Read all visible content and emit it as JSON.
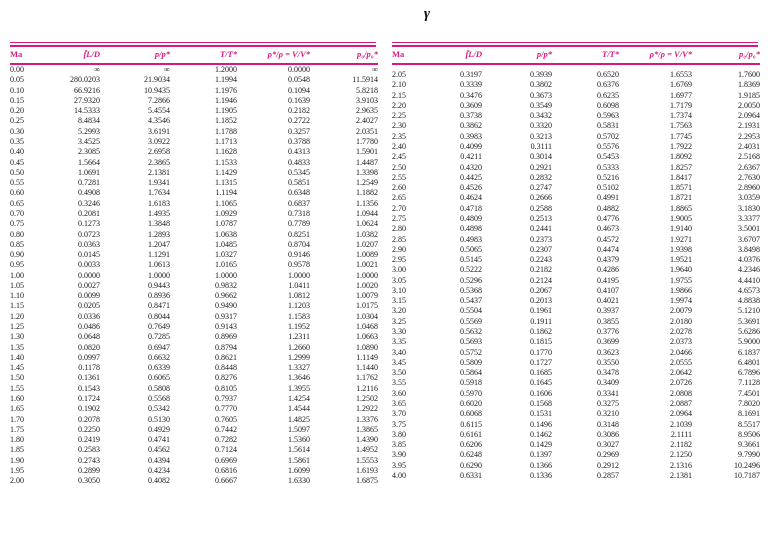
{
  "page_title": "γ",
  "colors": {
    "accent": "#d9187e",
    "text": "#181818",
    "background": "#ffffff"
  },
  "table": {
    "headers": [
      "Ma",
      "f̄L/D",
      "p/p*",
      "T/T*",
      "ρ*/ρ = V/V*",
      "p₀/p₀*"
    ],
    "left_rows": [
      [
        "0.00",
        "∞",
        "∞",
        "1.2000",
        "0.0000",
        "∞"
      ],
      [
        "0.05",
        "280.0203",
        "21.9034",
        "1.1994",
        "0.0548",
        "11.5914"
      ],
      [
        "0.10",
        "66.9216",
        "10.9435",
        "1.1976",
        "0.1094",
        "5.8218"
      ],
      [
        "0.15",
        "27.9320",
        "7.2866",
        "1.1946",
        "0.1639",
        "3.9103"
      ],
      [
        "0.20",
        "14.5333",
        "5.4554",
        "1.1905",
        "0.2182",
        "2.9635"
      ],
      [
        "0.25",
        "8.4834",
        "4.3546",
        "1.1852",
        "0.2722",
        "2.4027"
      ],
      [
        "0.30",
        "5.2993",
        "3.6191",
        "1.1788",
        "0.3257",
        "2.0351"
      ],
      [
        "0.35",
        "3.4525",
        "3.0922",
        "1.1713",
        "0.3788",
        "1.7780"
      ],
      [
        "0.40",
        "2.3085",
        "2.6958",
        "1.1628",
        "0.4313",
        "1.5901"
      ],
      [
        "0.45",
        "1.5664",
        "2.3865",
        "1.1533",
        "0.4833",
        "1.4487"
      ],
      [
        "0.50",
        "1.0691",
        "2.1381",
        "1.1429",
        "0.5345",
        "1.3398"
      ],
      [
        "0.55",
        "0.7281",
        "1.9341",
        "1.1315",
        "0.5851",
        "1.2549"
      ],
      [
        "0.60",
        "0.4908",
        "1.7634",
        "1.1194",
        "0.6348",
        "1.1882"
      ],
      [
        "0.65",
        "0.3246",
        "1.6183",
        "1.1065",
        "0.6837",
        "1.1356"
      ],
      [
        "0.70",
        "0.2081",
        "1.4935",
        "1.0929",
        "0.7318",
        "1.0944"
      ],
      [
        "0.75",
        "0.1273",
        "1.3848",
        "1.0787",
        "0.7789",
        "1.0624"
      ],
      [
        "0.80",
        "0.0723",
        "1.2893",
        "1.0638",
        "0.8251",
        "1.0382"
      ],
      [
        "0.85",
        "0.0363",
        "1.2047",
        "1.0485",
        "0.8704",
        "1.0207"
      ],
      [
        "0.90",
        "0.0145",
        "1.1291",
        "1.0327",
        "0.9146",
        "1.0089"
      ],
      [
        "0.95",
        "0.0033",
        "1.0613",
        "1.0165",
        "0.9578",
        "1.0021"
      ],
      [
        "1.00",
        "0.0000",
        "1.0000",
        "1.0000",
        "1.0000",
        "1.0000"
      ],
      [
        "1.05",
        "0.0027",
        "0.9443",
        "0.9832",
        "1.0411",
        "1.0020"
      ],
      [
        "1.10",
        "0.0099",
        "0.8936",
        "0.9662",
        "1.0812",
        "1.0079"
      ],
      [
        "1.15",
        "0.0205",
        "0.8471",
        "0.9490",
        "1.1203",
        "1.0175"
      ],
      [
        "1.20",
        "0.0336",
        "0.8044",
        "0.9317",
        "1.1583",
        "1.0304"
      ],
      [
        "1.25",
        "0.0486",
        "0.7649",
        "0.9143",
        "1.1952",
        "1.0468"
      ],
      [
        "1.30",
        "0.0648",
        "0.7285",
        "0.8969",
        "1.2311",
        "1.0663"
      ],
      [
        "1.35",
        "0.0820",
        "0.6947",
        "0.8794",
        "1.2660",
        "1.0890"
      ],
      [
        "1.40",
        "0.0997",
        "0.6632",
        "0.8621",
        "1.2999",
        "1.1149"
      ],
      [
        "1.45",
        "0.1178",
        "0.6339",
        "0.8448",
        "1.3327",
        "1.1440"
      ],
      [
        "1.50",
        "0.1361",
        "0.6065",
        "0.8276",
        "1.3646",
        "1.1762"
      ],
      [
        "1.55",
        "0.1543",
        "0.5808",
        "0.8105",
        "1.3955",
        "1.2116"
      ],
      [
        "1.60",
        "0.1724",
        "0.5568",
        "0.7937",
        "1.4254",
        "1.2502"
      ],
      [
        "1.65",
        "0.1902",
        "0.5342",
        "0.7770",
        "1.4544",
        "1.2922"
      ],
      [
        "1.70",
        "0.2078",
        "0.5130",
        "0.7605",
        "1.4825",
        "1.3376"
      ],
      [
        "1.75",
        "0.2250",
        "0.4929",
        "0.7442",
        "1.5097",
        "1.3865"
      ],
      [
        "1.80",
        "0.2419",
        "0.4741",
        "0.7282",
        "1.5360",
        "1.4390"
      ],
      [
        "1.85",
        "0.2583",
        "0.4562",
        "0.7124",
        "1.5614",
        "1.4952"
      ],
      [
        "1.90",
        "0.2743",
        "0.4394",
        "0.6969",
        "1.5861",
        "1.5553"
      ],
      [
        "1.95",
        "0.2899",
        "0.4234",
        "0.6816",
        "1.6099",
        "1.6193"
      ],
      [
        "2.00",
        "0.3050",
        "0.4082",
        "0.6667",
        "1.6330",
        "1.6875"
      ]
    ],
    "right_rows": [
      [
        "2.05",
        "0.3197",
        "0.3939",
        "0.6520",
        "1.6553",
        "1.7600"
      ],
      [
        "2.10",
        "0.3339",
        "0.3802",
        "0.6376",
        "1.6769",
        "1.8369"
      ],
      [
        "2.15",
        "0.3476",
        "0.3673",
        "0.6235",
        "1.6977",
        "1.9185"
      ],
      [
        "2.20",
        "0.3609",
        "0.3549",
        "0.6098",
        "1.7179",
        "2.0050"
      ],
      [
        "2.25",
        "0.3738",
        "0.3432",
        "0.5963",
        "1.7374",
        "2.0964"
      ],
      [
        "2.30",
        "0.3862",
        "0.3320",
        "0.5831",
        "1.7563",
        "2.1931"
      ],
      [
        "2.35",
        "0.3983",
        "0.3213",
        "0.5702",
        "1.7745",
        "2.2953"
      ],
      [
        "2.40",
        "0.4099",
        "0.3111",
        "0.5576",
        "1.7922",
        "2.4031"
      ],
      [
        "2.45",
        "0.4211",
        "0.3014",
        "0.5453",
        "1.8092",
        "2.5168"
      ],
      [
        "2.50",
        "0.4320",
        "0.2921",
        "0.5333",
        "1.8257",
        "2.6367"
      ],
      [
        "2.55",
        "0.4425",
        "0.2832",
        "0.5216",
        "1.8417",
        "2.7630"
      ],
      [
        "2.60",
        "0.4526",
        "0.2747",
        "0.5102",
        "1.8571",
        "2.8960"
      ],
      [
        "2.65",
        "0.4624",
        "0.2666",
        "0.4991",
        "1.8721",
        "3.0359"
      ],
      [
        "2.70",
        "0.4718",
        "0.2588",
        "0.4882",
        "1.8865",
        "3.1830"
      ],
      [
        "2.75",
        "0.4809",
        "0.2513",
        "0.4776",
        "1.9005",
        "3.3377"
      ],
      [
        "2.80",
        "0.4898",
        "0.2441",
        "0.4673",
        "1.9140",
        "3.5001"
      ],
      [
        "2.85",
        "0.4983",
        "0.2373",
        "0.4572",
        "1.9271",
        "3.6707"
      ],
      [
        "2.90",
        "0.5065",
        "0.2307",
        "0.4474",
        "1.9398",
        "3.8498"
      ],
      [
        "2.95",
        "0.5145",
        "0.2243",
        "0.4379",
        "1.9521",
        "4.0376"
      ],
      [
        "3.00",
        "0.5222",
        "0.2182",
        "0.4286",
        "1.9640",
        "4.2346"
      ],
      [
        "3.05",
        "0.5296",
        "0.2124",
        "0.4195",
        "1.9755",
        "4.4410"
      ],
      [
        "3.10",
        "0.5368",
        "0.2067",
        "0.4107",
        "1.9866",
        "4.6573"
      ],
      [
        "3.15",
        "0.5437",
        "0.2013",
        "0.4021",
        "1.9974",
        "4.8838"
      ],
      [
        "3.20",
        "0.5504",
        "0.1961",
        "0.3937",
        "2.0079",
        "5.1210"
      ],
      [
        "3.25",
        "0.5569",
        "0.1911",
        "0.3855",
        "2.0180",
        "5.3691"
      ],
      [
        "3.30",
        "0.5632",
        "0.1862",
        "0.3776",
        "2.0278",
        "5.6286"
      ],
      [
        "3.35",
        "0.5693",
        "0.1815",
        "0.3699",
        "2.0373",
        "5.9000"
      ],
      [
        "3.40",
        "0.5752",
        "0.1770",
        "0.3623",
        "2.0466",
        "6.1837"
      ],
      [
        "3.45",
        "0.5809",
        "0.1727",
        "0.3550",
        "2.0555",
        "6.4801"
      ],
      [
        "3.50",
        "0.5864",
        "0.1685",
        "0.3478",
        "2.0642",
        "6.7896"
      ],
      [
        "3.55",
        "0.5918",
        "0.1645",
        "0.3409",
        "2.0726",
        "7.1128"
      ],
      [
        "3.60",
        "0.5970",
        "0.1606",
        "0.3341",
        "2.0808",
        "7.4501"
      ],
      [
        "3.65",
        "0.6020",
        "0.1568",
        "0.3275",
        "2.0887",
        "7.8020"
      ],
      [
        "3.70",
        "0.6068",
        "0.1531",
        "0.3210",
        "2.0964",
        "8.1691"
      ],
      [
        "3.75",
        "0.6115",
        "0.1496",
        "0.3148",
        "2.1039",
        "8.5517"
      ],
      [
        "3.80",
        "0.6161",
        "0.1462",
        "0.3086",
        "2.1111",
        "8.9506"
      ],
      [
        "3.85",
        "0.6206",
        "0.1429",
        "0.3027",
        "2.1182",
        "9.3661"
      ],
      [
        "3.90",
        "0.6248",
        "0.1397",
        "0.2969",
        "2.1250",
        "9.7990"
      ],
      [
        "3.95",
        "0.6290",
        "0.1366",
        "0.2912",
        "2.1316",
        "10.2496"
      ],
      [
        "4.00",
        "0.6331",
        "0.1336",
        "0.2857",
        "2.1381",
        "10.7187"
      ]
    ]
  }
}
